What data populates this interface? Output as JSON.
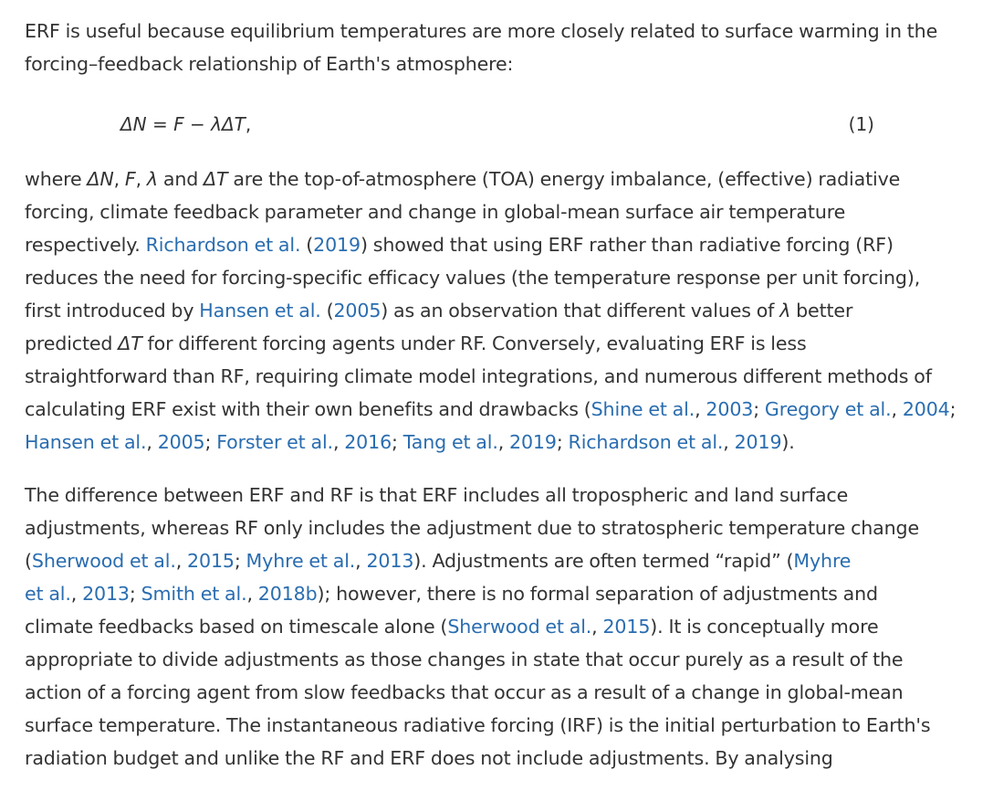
{
  "paragraph1": {
    "lines": [
      "ERF is useful because equilibrium temperatures are more closely related to surface warming in the",
      "forcing–feedback relationship of Earth's atmosphere:"
    ]
  },
  "equation": {
    "dN": "ΔN",
    "eq": " = ",
    "F": "F",
    "minus": " − ",
    "lambda": "λ",
    "dT": "ΔT",
    "comma": ",",
    "number": "(1)"
  },
  "paragraph2": {
    "l1_a": "where ",
    "l1_dN": "ΔN",
    "l1_c1": ", ",
    "l1_F": "F",
    "l1_c2": ", ",
    "l1_lambda": "λ",
    "l1_and": " and ",
    "l1_dT": "ΔT",
    "l1_b": " are the top-of-atmosphere (TOA) energy imbalance, (effective) radiative",
    "l2": "forcing, climate feedback parameter and change in global-mean surface air temperature",
    "l3_a": "respectively. ",
    "l3_link_richardson": "Richardson et al.",
    "l3_paren_open": " (",
    "l3_link_2019": "2019",
    "l3_b": ") showed that using ERF rather than radiative forcing (RF)",
    "l4": "reduces the need for forcing-specific efficacy values (the temperature response per unit forcing),",
    "l5_a": "first introduced by ",
    "l5_link_hansen": "Hansen et al.",
    "l5_paren_open": " (",
    "l5_link_2005": "2005",
    "l5_b": ") as an observation that different values of ",
    "l5_lambda": "λ",
    "l5_c": " better",
    "l6_a": "predicted ",
    "l6_dT": "ΔT",
    "l6_b": " for different forcing agents under RF. Conversely, evaluating ERF is less",
    "l7": "straightforward than RF, requiring climate model integrations, and numerous different methods of",
    "l8_a": "calculating ERF exist with their own benefits and drawbacks (",
    "l8_link_shine": "Shine et al.",
    "l8_sep1": ", ",
    "l8_link_2003": "2003",
    "l8_semi1": "; ",
    "l8_link_gregory": "Gregory et al.",
    "l8_sep2": ", ",
    "l8_link_2004": "2004",
    "l8_semi2": ";",
    "l9_link_hansen": "Hansen et al.",
    "l9_sep1": ", ",
    "l9_link_2005": "2005",
    "l9_semi1": "; ",
    "l9_link_forster": "Forster et al.",
    "l9_sep2": ", ",
    "l9_link_2016": "2016",
    "l9_semi2": "; ",
    "l9_link_tang": "Tang et al.",
    "l9_sep3": ", ",
    "l9_link_2019a": "2019",
    "l9_semi3": "; ",
    "l9_link_richardson": "Richardson et al.",
    "l9_sep4": ", ",
    "l9_link_2019b": "2019",
    "l9_end": ")."
  },
  "paragraph3": {
    "l1": "The difference between ERF and RF is that ERF includes all tropospheric and land surface",
    "l2": "adjustments, whereas RF only includes the adjustment due to stratospheric temperature change",
    "l3_open": "(",
    "l3_link_sherwood": "Sherwood et al.",
    "l3_sep1": ", ",
    "l3_link_2015": "2015",
    "l3_semi1": "; ",
    "l3_link_myhre": "Myhre et al.",
    "l3_sep2": ", ",
    "l3_link_2013": "2013",
    "l3_b": "). Adjustments are often termed “rapid” (",
    "l3_link_myhre2": "Myhre",
    "l4_link_etal": "et al.",
    "l4_sep1": ", ",
    "l4_link_2013": "2013",
    "l4_semi1": "; ",
    "l4_link_smith": "Smith et al.",
    "l4_sep2": ", ",
    "l4_link_2018b": "2018b",
    "l4_b": "); however, there is no formal separation of adjustments and",
    "l5_a": "climate feedbacks based on timescale alone (",
    "l5_link_sherwood": "Sherwood et al.",
    "l5_sep1": ", ",
    "l5_link_2015": "2015",
    "l5_b": "). It is conceptually more",
    "l6": "appropriate to divide adjustments as those changes in state that occur purely as a result of the",
    "l7": "action of a forcing agent from slow feedbacks that occur as a result of a change in global-mean",
    "l8": "surface temperature. The instantaneous radiative forcing (IRF) is the initial perturbation to Earth's",
    "l9": "radiation budget and unlike the RF and ERF does not include adjustments. By analysing"
  },
  "colors": {
    "text": "#333333",
    "link": "#2a6db0",
    "background": "#ffffff"
  }
}
